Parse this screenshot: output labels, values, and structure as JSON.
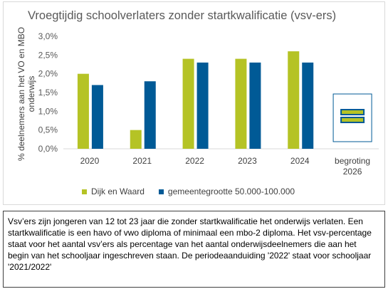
{
  "chart_data": {
    "type": "bar",
    "title": "Vroegtijdig schoolverlaters zonder startkwalificatie (vsv-ers)",
    "ylabel": "% deelnemers aan het VO en MBO onderwijs",
    "ylim": [
      0,
      3.0
    ],
    "yticks": [
      "0,0%",
      "0,5%",
      "1,0%",
      "1,5%",
      "2,0%",
      "2,5%",
      "3,0%"
    ],
    "categories": [
      "2020",
      "2021",
      "2022",
      "2023",
      "2024",
      "begroting 2026"
    ],
    "series": [
      {
        "name": "Dijk en Waard",
        "color": "#b5c325",
        "values": [
          2.0,
          0.5,
          2.4,
          2.4,
          2.6,
          null
        ]
      },
      {
        "name": "gemeentegrootte 50.000-100.000",
        "color": "#005a96",
        "values": [
          1.7,
          1.8,
          2.3,
          2.3,
          2.3,
          null
        ]
      }
    ],
    "grid": false,
    "legend": "bottom"
  },
  "note": "Vsv’ers zijn jongeren van 12 tot 23 jaar die zonder startkwalificatie het onderwijs verlaten. Een startkwalificatie is een havo of vwo diploma of minimaal een mbo-2 diploma. Het vsv-percentage staat voor het aantal vsv’ers als percentage van het aantal onderwijsdeelnemers die aan het begin van het schooljaar ingeschreven staan. De periodeaanduiding '2022' staat voor schooljaar '2021/2022'"
}
